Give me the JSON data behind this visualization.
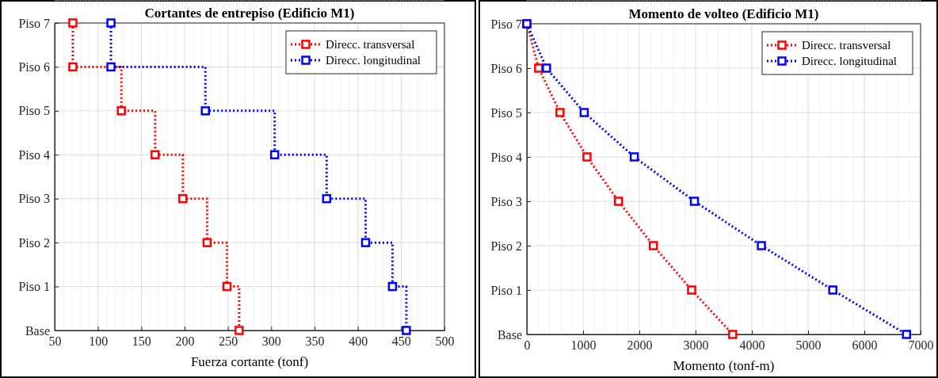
{
  "chart_data": [
    {
      "type": "step",
      "orientation": "horizontal",
      "title": "Cortantes de entrepiso (Edificio M1)",
      "xlabel": "Fuerza cortante (tonf)",
      "xlim": [
        50,
        500
      ],
      "xticks": [
        50,
        100,
        150,
        200,
        250,
        300,
        350,
        400,
        450,
        500
      ],
      "categories": [
        "Piso 7",
        "Piso 6",
        "Piso 5",
        "Piso 4",
        "Piso 3",
        "Piso 2",
        "Piso 1",
        "Base"
      ],
      "grid": true,
      "legend": "top right",
      "marker": "square",
      "line_style": "dotted",
      "series": [
        {
          "name": "Direcc. transversal",
          "color": "#ff0000",
          "values": [
            71,
            71,
            127,
            166,
            198,
            226,
            249,
            263
          ]
        },
        {
          "name": "Direcc. longitudinal",
          "color": "#0000ff",
          "values": [
            115,
            115,
            224,
            304,
            364,
            409,
            440,
            456
          ]
        }
      ]
    },
    {
      "type": "line",
      "orientation": "horizontal",
      "title": "Momento de volteo (Edificio M1)",
      "xlabel": "Momento (tonf-m)",
      "xlim": [
        0,
        7000
      ],
      "xticks": [
        0,
        1000,
        2000,
        3000,
        4000,
        5000,
        6000,
        7000
      ],
      "categories": [
        "Piso 7",
        "Piso 6",
        "Piso 5",
        "Piso 4",
        "Piso 3",
        "Piso 2",
        "Piso 1",
        "Base"
      ],
      "grid": true,
      "legend": "top right",
      "marker": "square",
      "line_style": "dotted",
      "series": [
        {
          "name": "Direcc. transversal",
          "color": "#ff0000",
          "values": [
            0,
            210,
            590,
            1070,
            1630,
            2250,
            2930,
            3660
          ]
        },
        {
          "name": "Direcc. longitudinal",
          "color": "#0000ff",
          "values": [
            0,
            350,
            1020,
            1910,
            2980,
            4170,
            5440,
            6750
          ]
        }
      ]
    }
  ]
}
